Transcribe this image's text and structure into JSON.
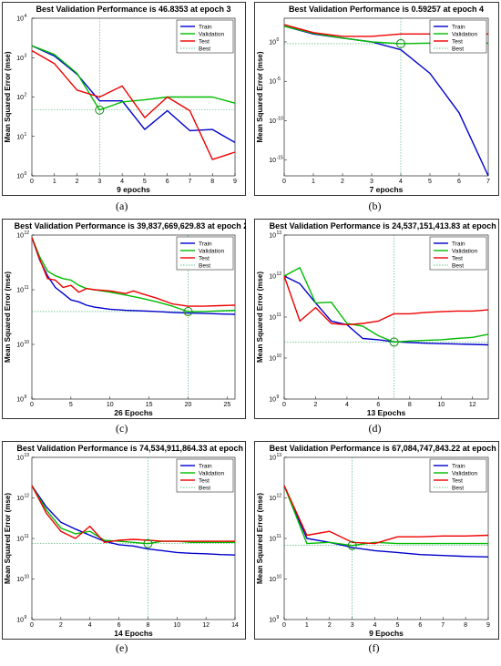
{
  "chart_data": [
    {
      "id": "a",
      "caption": "(a)",
      "type": "line",
      "title": "Best Validation Performance is 46.8353 at epoch 3",
      "xlabel": "9 epochs",
      "ylabel": "Mean Squared Error  (mse)",
      "yscale": "log",
      "xlim": [
        0,
        9
      ],
      "ylim_exp": [
        0,
        4
      ],
      "x_ticks": [
        "0",
        "1",
        "2",
        "3",
        "4",
        "5",
        "6",
        "7",
        "8",
        "9"
      ],
      "y_ticks": [
        {
          "base": "10",
          "exp": "0"
        },
        {
          "base": "10",
          "exp": "1"
        },
        {
          "base": "10",
          "exp": "2"
        },
        {
          "base": "10",
          "exp": "3"
        },
        {
          "base": "10",
          "exp": "4"
        }
      ],
      "legend": [
        "Train",
        "Validation",
        "Test",
        "Best"
      ],
      "series": [
        {
          "name": "Train",
          "color": "#0000cc",
          "x": [
            0,
            1,
            2,
            3,
            4,
            5,
            6,
            7,
            8,
            9
          ],
          "y": [
            2000,
            1100,
            380,
            80,
            80,
            15,
            45,
            14,
            15,
            7
          ]
        },
        {
          "name": "Validation",
          "color": "#00bb00",
          "x": [
            0,
            1,
            2,
            3,
            4,
            5,
            6,
            7,
            8,
            9
          ],
          "y": [
            2000,
            1200,
            400,
            46.8353,
            75,
            85,
            100,
            100,
            100,
            70
          ]
        },
        {
          "name": "Test",
          "color": "#ee0000",
          "x": [
            0,
            1,
            2,
            3,
            4,
            5,
            6,
            7,
            8,
            9
          ],
          "y": [
            1500,
            700,
            150,
            100,
            190,
            30,
            100,
            45,
            2.6,
            4
          ]
        }
      ],
      "best": {
        "x": 3,
        "y": 46.8353
      }
    },
    {
      "id": "b",
      "caption": "(b)",
      "type": "line",
      "title": "Best Validation Performance is 0.59257 at epoch 4",
      "xlabel": "7 epochs",
      "ylabel": "Mean Squared Error  (mse)",
      "yscale": "log",
      "xlim": [
        0,
        7
      ],
      "ylim_exp": [
        -17,
        3
      ],
      "x_ticks": [
        "0",
        "1",
        "2",
        "3",
        "4",
        "5",
        "6",
        "7"
      ],
      "y_ticks": [
        {
          "base": "10",
          "exp": "-15"
        },
        {
          "base": "10",
          "exp": "-10"
        },
        {
          "base": "10",
          "exp": "-5"
        },
        {
          "base": "10",
          "exp": "0"
        }
      ],
      "legend": [
        "Train",
        "Validation",
        "Test",
        "Best"
      ],
      "series": [
        {
          "name": "Train",
          "color": "#0000cc",
          "x": [
            0,
            1,
            2,
            3,
            4,
            5,
            6,
            7
          ],
          "y": [
            100,
            10,
            3,
            1,
            0.1,
            0.0001,
            1e-09,
            1e-17
          ]
        },
        {
          "name": "Validation",
          "color": "#00bb00",
          "x": [
            0,
            1,
            2,
            3,
            4,
            5,
            6,
            7
          ],
          "y": [
            100,
            12,
            3,
            1,
            0.59257,
            0.7,
            0.7,
            0.7
          ]
        },
        {
          "name": "Test",
          "color": "#ee0000",
          "x": [
            0,
            1,
            2,
            3,
            4,
            5,
            6,
            7
          ],
          "y": [
            150,
            15,
            5,
            5,
            10,
            10,
            10,
            10
          ]
        }
      ],
      "best": {
        "x": 4,
        "y": 0.59257
      }
    },
    {
      "id": "c",
      "caption": "(c)",
      "type": "line",
      "title": "Best Validation Performance is 39,837,669,629.83 at epoch 20",
      "xlabel": "26 Epochs",
      "ylabel": "Mean Squared Error  (mse)",
      "yscale": "log",
      "xlim": [
        0,
        26
      ],
      "ylim_exp": [
        9,
        12
      ],
      "x_ticks": [
        "0",
        "5",
        "10",
        "15",
        "20",
        "25"
      ],
      "x_tick_values": [
        0,
        5,
        10,
        15,
        20,
        25
      ],
      "y_ticks": [
        {
          "base": "10",
          "exp": "9"
        },
        {
          "base": "10",
          "exp": "10"
        },
        {
          "base": "10",
          "exp": "11"
        },
        {
          "base": "10",
          "exp": "12"
        }
      ],
      "legend": [
        "Train",
        "Validation",
        "Test",
        "Best"
      ],
      "series": [
        {
          "name": "Train",
          "color": "#0000cc",
          "x": [
            0,
            1,
            2,
            3,
            4,
            5,
            6,
            7,
            8,
            10,
            12,
            14,
            16,
            18,
            20,
            22,
            24,
            26
          ],
          "y": [
            900000000000.0,
            350000000000.0,
            180000000000.0,
            110000000000.0,
            85000000000.0,
            65000000000.0,
            60000000000.0,
            52000000000.0,
            48000000000.0,
            44000000000.0,
            42000000000.0,
            41000000000.0,
            40000000000.0,
            38500000000.0,
            37500000000.0,
            37000000000.0,
            36000000000.0,
            35500000000.0
          ]
        },
        {
          "name": "Validation",
          "color": "#00bb00",
          "x": [
            0,
            1,
            2,
            3,
            4,
            5,
            6,
            7,
            8,
            10,
            12,
            14,
            16,
            18,
            20,
            22,
            24,
            26
          ],
          "y": [
            900000000000.0,
            400000000000.0,
            220000000000.0,
            180000000000.0,
            160000000000.0,
            150000000000.0,
            120000000000.0,
            105000000000.0,
            100000000000.0,
            90000000000.0,
            80000000000.0,
            70000000000.0,
            60000000000.0,
            50000000000.0,
            39800000000.0,
            40000000000.0,
            41000000000.0,
            42000000000.0
          ]
        },
        {
          "name": "Test",
          "color": "#ee0000",
          "x": [
            0,
            1,
            2,
            3,
            4,
            5,
            6,
            7,
            8,
            10,
            12,
            13,
            14,
            16,
            18,
            20,
            22,
            24,
            26
          ],
          "y": [
            900000000000.0,
            360000000000.0,
            160000000000.0,
            150000000000.0,
            110000000000.0,
            120000000000.0,
            90000000000.0,
            105000000000.0,
            100000000000.0,
            95000000000.0,
            85000000000.0,
            95000000000.0,
            85000000000.0,
            70000000000.0,
            55000000000.0,
            50000000000.0,
            50000000000.0,
            51000000000.0,
            52000000000.0
          ]
        }
      ],
      "best": {
        "x": 20,
        "y": 39837669629.83
      }
    },
    {
      "id": "d",
      "caption": "(d)",
      "type": "line",
      "title": "Best Validation Performance is 24,537,151,413.83 at epoch 7",
      "xlabel": "13 Epochs",
      "ylabel": "Mean Squared Error  (mse)",
      "yscale": "log",
      "xlim": [
        0,
        13
      ],
      "ylim_exp": [
        9,
        13
      ],
      "x_ticks": [
        "0",
        "2",
        "4",
        "6",
        "8",
        "10",
        "12"
      ],
      "x_tick_values": [
        0,
        2,
        4,
        6,
        8,
        10,
        12
      ],
      "y_ticks": [
        {
          "base": "10",
          "exp": "9"
        },
        {
          "base": "10",
          "exp": "10"
        },
        {
          "base": "10",
          "exp": "11"
        },
        {
          "base": "10",
          "exp": "12"
        },
        {
          "base": "10",
          "exp": "13"
        }
      ],
      "legend": [
        "Train",
        "Validation",
        "Test",
        "Best"
      ],
      "series": [
        {
          "name": "Train",
          "color": "#0000cc",
          "x": [
            0,
            1,
            2,
            3,
            4,
            5,
            6,
            7,
            8,
            9,
            10,
            11,
            12,
            13
          ],
          "y": [
            1000000000000.0,
            650000000000.0,
            220000000000.0,
            80000000000.0,
            65000000000.0,
            30000000000.0,
            28000000000.0,
            25000000000.0,
            24000000000.0,
            23000000000.0,
            22500000000.0,
            22000000000.0,
            21500000000.0,
            21000000000.0
          ]
        },
        {
          "name": "Validation",
          "color": "#00bb00",
          "x": [
            0,
            1,
            2,
            3,
            4,
            5,
            6,
            7,
            8,
            9,
            10,
            11,
            12,
            13
          ],
          "y": [
            1000000000000.0,
            1600000000000.0,
            220000000000.0,
            230000000000.0,
            70000000000.0,
            60000000000.0,
            35000000000.0,
            24500000000.0,
            26000000000.0,
            27000000000.0,
            28000000000.0,
            30000000000.0,
            32000000000.0,
            38000000000.0
          ]
        },
        {
          "name": "Test",
          "color": "#ee0000",
          "x": [
            0,
            1,
            2,
            3,
            4,
            5,
            6,
            7,
            8,
            9,
            10,
            11,
            12,
            13
          ],
          "y": [
            1000000000000.0,
            80000000000.0,
            170000000000.0,
            70000000000.0,
            65000000000.0,
            70000000000.0,
            80000000000.0,
            120000000000.0,
            120000000000.0,
            130000000000.0,
            135000000000.0,
            140000000000.0,
            140000000000.0,
            150000000000.0
          ]
        }
      ],
      "best": {
        "x": 7,
        "y": 24537151413.83
      }
    },
    {
      "id": "e",
      "caption": "(e)",
      "type": "line",
      "title": "Best Validation Performance is 74,534,911,864.33 at epoch 8",
      "xlabel": "14 Epochs",
      "ylabel": "Mean Squared Error  (mse)",
      "yscale": "log",
      "xlim": [
        0,
        14
      ],
      "ylim_exp": [
        9,
        13
      ],
      "x_ticks": [
        "0",
        "2",
        "4",
        "6",
        "8",
        "10",
        "12",
        "14"
      ],
      "x_tick_values": [
        0,
        2,
        4,
        6,
        8,
        10,
        12,
        14
      ],
      "y_ticks": [
        {
          "base": "10",
          "exp": "9"
        },
        {
          "base": "10",
          "exp": "10"
        },
        {
          "base": "10",
          "exp": "11"
        },
        {
          "base": "10",
          "exp": "12"
        },
        {
          "base": "10",
          "exp": "13"
        }
      ],
      "legend": [
        "Train",
        "Validation",
        "Test",
        "Best"
      ],
      "series": [
        {
          "name": "Train",
          "color": "#0000cc",
          "x": [
            0,
            1,
            2,
            3,
            4,
            5,
            6,
            7,
            8,
            9,
            10,
            11,
            12,
            13,
            14
          ],
          "y": [
            2000000000000.0,
            600000000000.0,
            250000000000.0,
            170000000000.0,
            120000000000.0,
            85000000000.0,
            70000000000.0,
            65000000000.0,
            55000000000.0,
            50000000000.0,
            45000000000.0,
            43000000000.0,
            42000000000.0,
            40000000000.0,
            39000000000.0
          ]
        },
        {
          "name": "Validation",
          "color": "#00bb00",
          "x": [
            0,
            1,
            2,
            3,
            4,
            5,
            6,
            7,
            8,
            9,
            10,
            11,
            12,
            13,
            14
          ],
          "y": [
            2000000000000.0,
            500000000000.0,
            180000000000.0,
            130000000000.0,
            150000000000.0,
            90000000000.0,
            85000000000.0,
            80000000000.0,
            74500000000.0,
            85000000000.0,
            85000000000.0,
            80000000000.0,
            80000000000.0,
            80000000000.0,
            80000000000.0
          ]
        },
        {
          "name": "Test",
          "color": "#ee0000",
          "x": [
            0,
            1,
            2,
            3,
            4,
            5,
            6,
            7,
            8,
            9,
            10,
            11,
            12,
            13,
            14
          ],
          "y": [
            2000000000000.0,
            420000000000.0,
            150000000000.0,
            100000000000.0,
            200000000000.0,
            80000000000.0,
            90000000000.0,
            95000000000.0,
            90000000000.0,
            85000000000.0,
            85000000000.0,
            85000000000.0,
            85000000000.0,
            85000000000.0,
            85000000000.0
          ]
        }
      ],
      "best": {
        "x": 8,
        "y": 74534911864.33
      }
    },
    {
      "id": "f",
      "caption": "(f)",
      "type": "line",
      "title": "Best Validation Performance is 67,084,747,843.22 at epoch 3",
      "xlabel": "9 Epochs",
      "ylabel": "Mean Squared Error  (mse)",
      "yscale": "log",
      "xlim": [
        0,
        9
      ],
      "ylim_exp": [
        9,
        13
      ],
      "x_ticks": [
        "0",
        "1",
        "2",
        "3",
        "4",
        "5",
        "6",
        "7",
        "8",
        "9"
      ],
      "y_ticks": [
        {
          "base": "10",
          "exp": "9"
        },
        {
          "base": "10",
          "exp": "10"
        },
        {
          "base": "10",
          "exp": "11"
        },
        {
          "base": "10",
          "exp": "12"
        },
        {
          "base": "10",
          "exp": "13"
        }
      ],
      "legend": [
        "Train",
        "Validation",
        "Test",
        "Best"
      ],
      "series": [
        {
          "name": "Train",
          "color": "#0000cc",
          "x": [
            0,
            1,
            2,
            3,
            4,
            5,
            6,
            7,
            8,
            9
          ],
          "y": [
            2000000000000.0,
            100000000000.0,
            80000000000.0,
            60000000000.0,
            50000000000.0,
            45000000000.0,
            40000000000.0,
            38000000000.0,
            36000000000.0,
            35000000000.0
          ]
        },
        {
          "name": "Validation",
          "color": "#00bb00",
          "x": [
            0,
            1,
            2,
            3,
            4,
            5,
            6,
            7,
            8,
            9
          ],
          "y": [
            2000000000000.0,
            75000000000.0,
            80000000000.0,
            67100000000.0,
            80000000000.0,
            75000000000.0,
            75000000000.0,
            75000000000.0,
            75000000000.0,
            75000000000.0
          ]
        },
        {
          "name": "Test",
          "color": "#ee0000",
          "x": [
            0,
            1,
            2,
            3,
            4,
            5,
            6,
            7,
            8,
            9
          ],
          "y": [
            2000000000000.0,
            120000000000.0,
            150000000000.0,
            80000000000.0,
            75000000000.0,
            110000000000.0,
            110000000000.0,
            115000000000.0,
            115000000000.0,
            120000000000.0
          ]
        }
      ],
      "best": {
        "x": 3,
        "y": 67084747843.22
      }
    }
  ]
}
